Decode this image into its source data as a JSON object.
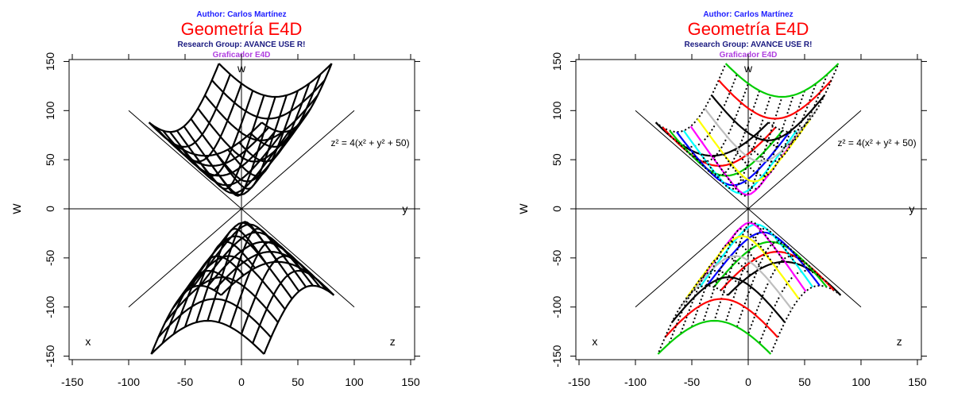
{
  "chart_data": [
    {
      "type": "line",
      "panel": "left",
      "author": "Author: Carlos Martínez",
      "title": "Geometría E4D",
      "research_group": "Research Group: AVANCE USE R!",
      "subtitle": "Graficador E4D",
      "ylabel": "W",
      "xlabel": "",
      "xlim": [
        -150,
        150
      ],
      "ylim": [
        -150,
        150
      ],
      "x_ticks": [
        -150,
        -100,
        -50,
        0,
        50,
        100,
        150
      ],
      "y_ticks": [
        -150,
        -100,
        -50,
        0,
        50,
        100,
        150
      ],
      "axis_labels": {
        "w": "w",
        "y": "y",
        "x": "x",
        "z": "z"
      },
      "formula": "z² = 4(x² + y² + 50)",
      "surface": "hyperboloid of two sheets, wireframe mesh",
      "mesh_colors": [
        "#000000"
      ],
      "grid": false
    },
    {
      "type": "line",
      "panel": "right",
      "author": "Author: Carlos Martínez",
      "title": "Geometría E4D",
      "research_group": "Research Group: AVANCE USE R!",
      "subtitle": "Graficador E4D",
      "ylabel": "W",
      "xlabel": "",
      "xlim": [
        -150,
        150
      ],
      "ylim": [
        -150,
        150
      ],
      "x_ticks": [
        -150,
        -100,
        -50,
        0,
        50,
        100,
        150
      ],
      "y_ticks": [
        -150,
        -100,
        -50,
        0,
        50,
        100,
        150
      ],
      "axis_labels": {
        "w": "w",
        "y": "y",
        "x": "x",
        "z": "z"
      },
      "formula": "z² = 4(x² + y² + 50)",
      "surface": "hyperboloid of two sheets, colored mesh with dotted cross-lines",
      "mesh_colors": [
        "#000000",
        "#ff0000",
        "#00cc00",
        "#0000ff",
        "#00ffff",
        "#ff00ff",
        "#ffff00",
        "#bebebe"
      ],
      "grid": false
    }
  ]
}
